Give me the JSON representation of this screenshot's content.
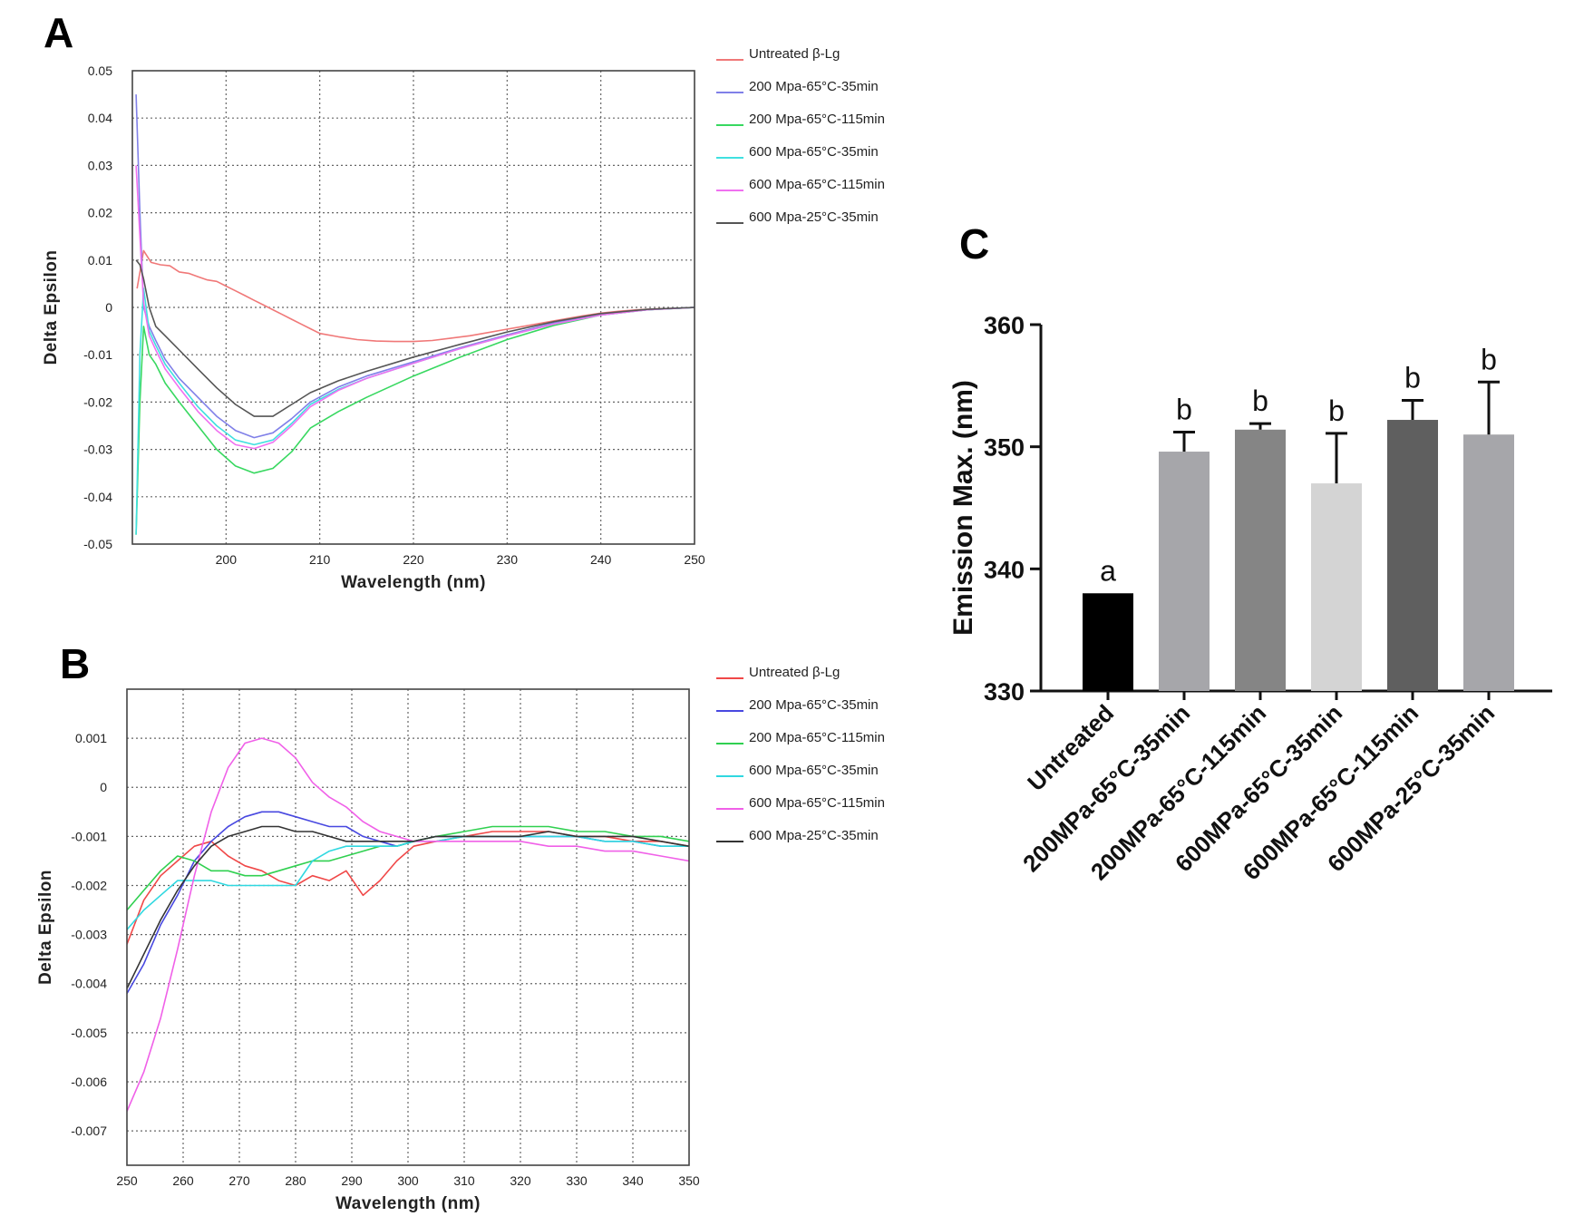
{
  "panels": [
    {
      "letter": "A"
    },
    {
      "letter": "B"
    },
    {
      "letter": "C"
    }
  ],
  "chart_data": [
    {
      "panel": "A",
      "type": "line",
      "xlabel": "Wavelength (nm)",
      "ylabel": "Delta Epsilon",
      "xlim": [
        190,
        250
      ],
      "ylim": [
        -0.05,
        0.05
      ],
      "x_ticks": [
        200,
        210,
        220,
        230,
        240,
        250
      ],
      "x_tick_labels": [
        "200",
        "210",
        "220",
        "230",
        "240",
        "250"
      ],
      "y_ticks": [
        0.05,
        0.04,
        0.03,
        0.02,
        0.01,
        0,
        -0.01,
        -0.02,
        -0.03,
        -0.04,
        -0.05
      ],
      "y_tick_labels": [
        "0.05",
        "0.04",
        "0.03",
        "0.02",
        "0.01",
        "0",
        "-0.01",
        "-0.02",
        "-0.03",
        "-0.04",
        "-0.05"
      ],
      "grid": true,
      "legend_position": "right",
      "series": [
        {
          "name": "Untreated β-Lg",
          "color": "#f07878",
          "x": [
            190.5,
            191.2,
            192,
            193,
            194,
            195,
            196,
            197,
            198,
            199,
            200,
            201,
            202,
            203,
            204,
            205,
            206,
            207,
            208,
            209,
            210,
            212,
            214,
            216,
            218,
            220,
            222,
            224,
            226,
            228,
            230,
            232,
            234,
            236,
            238,
            240,
            242,
            244,
            246,
            248,
            250
          ],
          "y": [
            0.004,
            0.012,
            0.0095,
            0.009,
            0.0088,
            0.0075,
            0.0072,
            0.0065,
            0.0058,
            0.0055,
            0.0045,
            0.0035,
            0.0025,
            0.0015,
            0.0005,
            -0.0005,
            -0.0015,
            -0.0025,
            -0.0035,
            -0.0045,
            -0.0055,
            -0.0062,
            -0.0068,
            -0.0071,
            -0.0072,
            -0.0072,
            -0.007,
            -0.0065,
            -0.006,
            -0.0053,
            -0.0046,
            -0.0039,
            -0.0032,
            -0.0025,
            -0.0018,
            -0.0012,
            -0.0008,
            -0.0005,
            -0.0003,
            -0.0002,
            0.0
          ]
        },
        {
          "name": "200 Mpa-65°C-35min",
          "color": "#8080e8",
          "x": [
            190.4,
            190.8,
            191.2,
            191.8,
            192.5,
            193.5,
            195,
            197,
            199,
            201,
            203,
            205,
            207,
            209,
            212,
            215,
            220,
            225,
            230,
            235,
            240,
            245,
            250
          ],
          "y": [
            0.045,
            0.02,
            0.0,
            -0.004,
            -0.007,
            -0.011,
            -0.015,
            -0.019,
            -0.023,
            -0.026,
            -0.0275,
            -0.0265,
            -0.0235,
            -0.02,
            -0.0168,
            -0.0145,
            -0.0115,
            -0.0085,
            -0.0058,
            -0.0033,
            -0.0015,
            -0.0005,
            0.0
          ]
        },
        {
          "name": "200 Mpa-65°C-115min",
          "color": "#38d860",
          "x": [
            190.4,
            190.8,
            191.2,
            191.8,
            192.5,
            193.5,
            195,
            197,
            199,
            201,
            203,
            205,
            207,
            209,
            212,
            215,
            220,
            225,
            230,
            235,
            240,
            245,
            250
          ],
          "y": [
            -0.048,
            -0.02,
            -0.004,
            -0.01,
            -0.012,
            -0.016,
            -0.02,
            -0.025,
            -0.03,
            -0.0335,
            -0.035,
            -0.034,
            -0.0305,
            -0.0255,
            -0.022,
            -0.019,
            -0.0145,
            -0.0105,
            -0.0068,
            -0.0038,
            -0.0016,
            -0.0005,
            0.0
          ]
        },
        {
          "name": "600 Mpa-65°C-35min",
          "color": "#40e0e0",
          "x": [
            190.4,
            190.8,
            191.2,
            191.8,
            192.5,
            193.5,
            195,
            197,
            199,
            201,
            203,
            205,
            207,
            209,
            212,
            215,
            220,
            225,
            230,
            235,
            240,
            245,
            250
          ],
          "y": [
            -0.048,
            -0.01,
            0.004,
            -0.005,
            -0.008,
            -0.012,
            -0.016,
            -0.021,
            -0.025,
            -0.028,
            -0.029,
            -0.028,
            -0.0245,
            -0.0205,
            -0.0173,
            -0.015,
            -0.0118,
            -0.0087,
            -0.006,
            -0.0035,
            -0.0016,
            -0.0005,
            0.0
          ]
        },
        {
          "name": "600 Mpa-65°C-115min",
          "color": "#f070f0",
          "x": [
            190.4,
            190.8,
            191.2,
            191.8,
            192.5,
            193.5,
            195,
            197,
            199,
            201,
            203,
            205,
            207,
            209,
            212,
            215,
            220,
            225,
            230,
            235,
            240,
            245,
            250
          ],
          "y": [
            0.03,
            0.015,
            0.001,
            -0.006,
            -0.009,
            -0.013,
            -0.017,
            -0.022,
            -0.026,
            -0.029,
            -0.0298,
            -0.0285,
            -0.025,
            -0.021,
            -0.0175,
            -0.015,
            -0.0118,
            -0.0087,
            -0.006,
            -0.0035,
            -0.0016,
            -0.0005,
            0.0
          ]
        },
        {
          "name": "600 Mpa-25°C-35min",
          "color": "#555555",
          "x": [
            190.4,
            190.8,
            191.2,
            191.8,
            192.5,
            193.5,
            195,
            197,
            199,
            201,
            203,
            205,
            207,
            209,
            212,
            215,
            220,
            225,
            230,
            235,
            240,
            245,
            250
          ],
          "y": [
            0.01,
            0.009,
            0.006,
            0.0,
            -0.004,
            -0.006,
            -0.009,
            -0.013,
            -0.017,
            -0.0205,
            -0.023,
            -0.023,
            -0.0205,
            -0.018,
            -0.0155,
            -0.0135,
            -0.0105,
            -0.0078,
            -0.0052,
            -0.003,
            -0.0013,
            -0.0004,
            0.0
          ]
        }
      ]
    },
    {
      "panel": "B",
      "type": "line",
      "xlabel": "Wavelength (nm)",
      "ylabel": "Delta Epsilon",
      "xlim": [
        250,
        350
      ],
      "ylim": [
        -0.0077,
        0.002
      ],
      "x_ticks": [
        250,
        260,
        270,
        280,
        290,
        300,
        310,
        320,
        330,
        340,
        350
      ],
      "x_tick_labels": [
        "250",
        "260",
        "270",
        "280",
        "290",
        "300",
        "310",
        "320",
        "330",
        "340",
        "350"
      ],
      "y_ticks": [
        0.001,
        0,
        -0.001,
        -0.002,
        -0.003,
        -0.004,
        -0.005,
        -0.006,
        -0.007
      ],
      "y_tick_labels": [
        "0.001",
        "0",
        "-0.001",
        "-0.002",
        "-0.003",
        "-0.004",
        "-0.005",
        "-0.006",
        "-0.007"
      ],
      "grid": true,
      "legend_position": "right",
      "series": [
        {
          "name": "Untreated β-Lg",
          "color": "#f04848",
          "x": [
            250,
            253,
            256,
            259,
            262,
            265,
            268,
            271,
            274,
            277,
            280,
            283,
            286,
            289,
            292,
            295,
            298,
            301,
            305,
            310,
            315,
            320,
            325,
            330,
            335,
            340,
            345,
            350
          ],
          "y": [
            -0.0032,
            -0.0023,
            -0.0018,
            -0.0015,
            -0.0012,
            -0.0011,
            -0.0014,
            -0.0016,
            -0.0017,
            -0.0019,
            -0.002,
            -0.0018,
            -0.0019,
            -0.0017,
            -0.0022,
            -0.0019,
            -0.0015,
            -0.0012,
            -0.0011,
            -0.001,
            -0.0009,
            -0.0009,
            -0.0009,
            -0.001,
            -0.001,
            -0.0011,
            -0.0011,
            -0.0012
          ]
        },
        {
          "name": "200 Mpa-65°C-35min",
          "color": "#4848e0",
          "x": [
            250,
            253,
            256,
            259,
            262,
            265,
            268,
            271,
            274,
            277,
            280,
            283,
            286,
            289,
            292,
            295,
            298,
            301,
            305,
            310,
            315,
            320,
            325,
            330,
            335,
            340,
            345,
            350
          ],
          "y": [
            -0.0042,
            -0.0036,
            -0.0028,
            -0.0022,
            -0.0015,
            -0.0011,
            -0.0008,
            -0.0006,
            -0.0005,
            -0.0005,
            -0.0006,
            -0.0007,
            -0.0008,
            -0.0008,
            -0.001,
            -0.0011,
            -0.0012,
            -0.0011,
            -0.001,
            -0.001,
            -0.001,
            -0.001,
            -0.001,
            -0.001,
            -0.0011,
            -0.0011,
            -0.0012,
            -0.0012
          ]
        },
        {
          "name": "200 Mpa-65°C-115min",
          "color": "#30d050",
          "x": [
            250,
            253,
            256,
            259,
            262,
            265,
            268,
            271,
            274,
            277,
            280,
            283,
            286,
            289,
            292,
            295,
            298,
            301,
            305,
            310,
            315,
            320,
            325,
            330,
            335,
            340,
            345,
            350
          ],
          "y": [
            -0.0025,
            -0.0021,
            -0.0017,
            -0.0014,
            -0.0015,
            -0.0017,
            -0.0017,
            -0.0018,
            -0.0018,
            -0.0017,
            -0.0016,
            -0.0015,
            -0.0015,
            -0.0014,
            -0.0013,
            -0.0012,
            -0.0012,
            -0.0011,
            -0.001,
            -0.0009,
            -0.0008,
            -0.0008,
            -0.0008,
            -0.0009,
            -0.0009,
            -0.001,
            -0.001,
            -0.0011
          ]
        },
        {
          "name": "600 Mpa-65°C-35min",
          "color": "#30d8e0",
          "x": [
            250,
            253,
            256,
            259,
            262,
            265,
            268,
            271,
            274,
            277,
            280,
            283,
            286,
            289,
            292,
            295,
            298,
            301,
            305,
            310,
            315,
            320,
            325,
            330,
            335,
            340,
            345,
            350
          ],
          "y": [
            -0.0029,
            -0.0025,
            -0.0022,
            -0.0019,
            -0.0019,
            -0.0019,
            -0.002,
            -0.002,
            -0.002,
            -0.002,
            -0.002,
            -0.0015,
            -0.0013,
            -0.0012,
            -0.0012,
            -0.0012,
            -0.0012,
            -0.0011,
            -0.0011,
            -0.001,
            -0.001,
            -0.001,
            -0.001,
            -0.001,
            -0.0011,
            -0.0011,
            -0.0012,
            -0.0012
          ]
        },
        {
          "name": "600 Mpa-65°C-115min",
          "color": "#f060e8",
          "x": [
            250,
            253,
            256,
            259,
            262,
            265,
            268,
            271,
            274,
            277,
            280,
            283,
            286,
            289,
            292,
            295,
            298,
            301,
            305,
            310,
            315,
            320,
            325,
            330,
            335,
            340,
            345,
            350
          ],
          "y": [
            -0.0066,
            -0.0058,
            -0.0047,
            -0.0033,
            -0.0018,
            -0.0005,
            0.0004,
            0.0009,
            0.001,
            0.0009,
            0.0006,
            0.0001,
            -0.0002,
            -0.0004,
            -0.0007,
            -0.0009,
            -0.001,
            -0.0011,
            -0.0011,
            -0.0011,
            -0.0011,
            -0.0011,
            -0.0012,
            -0.0012,
            -0.0013,
            -0.0013,
            -0.0014,
            -0.0015
          ]
        },
        {
          "name": "600 Mpa-25°C-35min",
          "color": "#333333",
          "x": [
            250,
            253,
            256,
            259,
            262,
            265,
            268,
            271,
            274,
            277,
            280,
            283,
            286,
            289,
            292,
            295,
            298,
            301,
            305,
            310,
            315,
            320,
            325,
            330,
            335,
            340,
            345,
            350
          ],
          "y": [
            -0.0041,
            -0.0034,
            -0.0027,
            -0.0021,
            -0.0016,
            -0.0012,
            -0.001,
            -0.0009,
            -0.0008,
            -0.0008,
            -0.0009,
            -0.0009,
            -0.001,
            -0.0011,
            -0.0011,
            -0.0011,
            -0.0011,
            -0.0011,
            -0.001,
            -0.001,
            -0.001,
            -0.001,
            -0.0009,
            -0.001,
            -0.001,
            -0.001,
            -0.0011,
            -0.0012
          ]
        }
      ]
    },
    {
      "panel": "C",
      "type": "bar",
      "ylabel": "Emission Max. (nm)",
      "xlabel": "",
      "ylim": [
        330,
        360
      ],
      "y_ticks": [
        330,
        340,
        350,
        360
      ],
      "y_tick_labels": [
        "330",
        "340",
        "350",
        "360"
      ],
      "grid": false,
      "categories": [
        "Untreated",
        "200MPa-65°C-35min",
        "200MPa-65°C-115min",
        "600MPa-65°C-35min",
        "600MPa-65°C-115min",
        "600MPa-25°C-35min"
      ],
      "values": [
        338.0,
        349.6,
        351.4,
        347.0,
        352.2,
        351.0
      ],
      "errors": [
        0,
        1.6,
        0.5,
        4.1,
        1.6,
        4.3
      ],
      "significance": [
        "a",
        "b",
        "b",
        "b",
        "b",
        "b"
      ],
      "colors": [
        "#000000",
        "#a6a6aa",
        "#858585",
        "#d4d4d4",
        "#5f5f5f",
        "#a6a6aa"
      ]
    }
  ]
}
